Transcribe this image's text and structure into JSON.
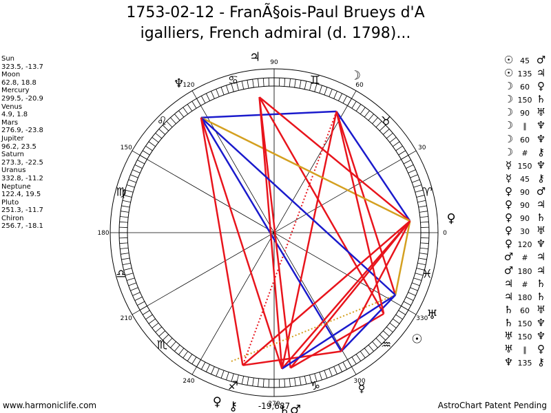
{
  "title_line1": "1753-02-12 - FranÃ§ois-Paul Brueys d'A",
  "title_line2": "igalliers, French admiral (d. 1798)...",
  "footer_left": "www.harmoniclife.com",
  "footer_right": "AstroChart Patent Pending",
  "colors": {
    "hard": "#e8141c",
    "soft": "#1a1acc",
    "minor": "#d4a020",
    "ring": "#000000"
  },
  "planets_text": [
    {
      "name": "Sun",
      "coords": "323.5, -13.7"
    },
    {
      "name": "Moon",
      "coords": "62.8, 18.8"
    },
    {
      "name": "Mercury",
      "coords": "299.5, -20.9"
    },
    {
      "name": "Venus",
      "coords": "4.9, 1.8"
    },
    {
      "name": "Mars",
      "coords": "276.9, -23.8"
    },
    {
      "name": "Jupiter",
      "coords": "96.2, 23.5"
    },
    {
      "name": "Saturn",
      "coords": "273.3, -22.5"
    },
    {
      "name": "Uranus",
      "coords": "332.8, -11.2"
    },
    {
      "name": "Neptune",
      "coords": "122.4, 19.5"
    },
    {
      "name": "Pluto",
      "coords": "251.3, -11.7"
    },
    {
      "name": "Chiron",
      "coords": "256.7, -18.1"
    }
  ],
  "aspects_text": [
    {
      "p1": "☉",
      "sym": "45",
      "p2": "♂"
    },
    {
      "p1": "☉",
      "sym": "135",
      "p2": "♃"
    },
    {
      "p1": "☽",
      "sym": "60",
      "p2": "♀"
    },
    {
      "p1": "☽",
      "sym": "150",
      "p2": "♄"
    },
    {
      "p1": "☽",
      "sym": "90",
      "p2": "♅"
    },
    {
      "p1": "☽",
      "sym": "∥",
      "p2": "♆"
    },
    {
      "p1": "☽",
      "sym": "60",
      "p2": "♆"
    },
    {
      "p1": "☽",
      "sym": "#",
      "p2": "⚷"
    },
    {
      "p1": "☿",
      "sym": "150",
      "p2": "♆"
    },
    {
      "p1": "☿",
      "sym": "45",
      "p2": "⚷"
    },
    {
      "p1": "♀",
      "sym": "90",
      "p2": "♂"
    },
    {
      "p1": "♀",
      "sym": "90",
      "p2": "♃"
    },
    {
      "p1": "♀",
      "sym": "90",
      "p2": "♄"
    },
    {
      "p1": "♀",
      "sym": "30",
      "p2": "♅"
    },
    {
      "p1": "♀",
      "sym": "120",
      "p2": "♆"
    },
    {
      "p1": "♂",
      "sym": "#",
      "p2": "♃"
    },
    {
      "p1": "♂",
      "sym": "180",
      "p2": "♃"
    },
    {
      "p1": "♃",
      "sym": "#",
      "p2": "♄"
    },
    {
      "p1": "♃",
      "sym": "180",
      "p2": "♄"
    },
    {
      "p1": "♄",
      "sym": "60",
      "p2": "♅"
    },
    {
      "p1": "♄",
      "sym": "150",
      "p2": "♆"
    },
    {
      "p1": "♅",
      "sym": "150",
      "p2": "♆"
    },
    {
      "p1": "♅",
      "sym": "∥",
      "p2": "♀"
    },
    {
      "p1": "♆",
      "sym": "135",
      "p2": "⚷"
    }
  ],
  "chart_data": {
    "type": "scatter",
    "title": "1753-02-12 - FranÃ§ois-Paul Brueys d'Aigalliers, French admiral (d. 1798)...",
    "degree_labels": [
      "0",
      "30",
      "60",
      "90",
      "120",
      "150",
      "180",
      "210",
      "240",
      "270",
      "300",
      "330"
    ],
    "center_label": "-19,687",
    "sign_glyphs": [
      "♈",
      "♉",
      "♊",
      "♋",
      "♌",
      "♍",
      "♎",
      "♏",
      "♐",
      "♑",
      "♒",
      "♓"
    ],
    "planets": [
      {
        "name": "Sun",
        "glyph": "☉",
        "longitude": 323.5,
        "declination": -13.7
      },
      {
        "name": "Moon",
        "glyph": "☽",
        "longitude": 62.8,
        "declination": 18.8
      },
      {
        "name": "Mercury",
        "glyph": "☿",
        "longitude": 299.5,
        "declination": -20.9
      },
      {
        "name": "Venus",
        "glyph": "♀",
        "longitude": 4.9,
        "declination": 1.8
      },
      {
        "name": "Mars",
        "glyph": "♂",
        "longitude": 276.9,
        "declination": -23.8
      },
      {
        "name": "Jupiter",
        "glyph": "♃",
        "longitude": 96.2,
        "declination": 23.5
      },
      {
        "name": "Saturn",
        "glyph": "♄",
        "longitude": 273.3,
        "declination": -22.5
      },
      {
        "name": "Uranus",
        "glyph": "♅",
        "longitude": 332.8,
        "declination": -11.2
      },
      {
        "name": "Neptune",
        "glyph": "♆",
        "longitude": 122.4,
        "declination": 19.5
      },
      {
        "name": "Pluto",
        "glyph": "♀",
        "longitude": 251.3,
        "declination": -11.7
      },
      {
        "name": "Chiron",
        "glyph": "⚷",
        "longitude": 256.7,
        "declination": -18.1
      }
    ],
    "aspect_lines": [
      {
        "from": "Sun",
        "to": "Mars",
        "kind": "hard"
      },
      {
        "from": "Sun",
        "to": "Jupiter",
        "kind": "hard"
      },
      {
        "from": "Moon",
        "to": "Venus",
        "kind": "soft"
      },
      {
        "from": "Moon",
        "to": "Saturn",
        "kind": "hard"
      },
      {
        "from": "Moon",
        "to": "Uranus",
        "kind": "hard"
      },
      {
        "from": "Moon",
        "to": "Neptune",
        "kind": "soft"
      },
      {
        "from": "Moon",
        "to": "Chiron",
        "kind": "hard",
        "dotted": true
      },
      {
        "from": "Mercury",
        "to": "Neptune",
        "kind": "soft"
      },
      {
        "from": "Mercury",
        "to": "Chiron",
        "kind": "hard"
      },
      {
        "from": "Venus",
        "to": "Mars",
        "kind": "hard"
      },
      {
        "from": "Venus",
        "to": "Jupiter",
        "kind": "hard"
      },
      {
        "from": "Venus",
        "to": "Saturn",
        "kind": "hard"
      },
      {
        "from": "Venus",
        "to": "Uranus",
        "kind": "minor"
      },
      {
        "from": "Venus",
        "to": "Neptune",
        "kind": "minor"
      },
      {
        "from": "Mars",
        "to": "Jupiter",
        "kind": "hard"
      },
      {
        "from": "Jupiter",
        "to": "Saturn",
        "kind": "hard"
      },
      {
        "from": "Jupiter",
        "to": "Mars",
        "kind": "hard",
        "dotted": true
      },
      {
        "from": "Saturn",
        "to": "Uranus",
        "kind": "soft"
      },
      {
        "from": "Saturn",
        "to": "Neptune",
        "kind": "hard"
      },
      {
        "from": "Uranus",
        "to": "Neptune",
        "kind": "soft"
      },
      {
        "from": "Uranus",
        "to": "Pluto",
        "kind": "minor",
        "dotted": true
      },
      {
        "from": "Neptune",
        "to": "Chiron",
        "kind": "hard"
      },
      {
        "from": "Uranus",
        "to": "Mercury",
        "kind": "soft"
      },
      {
        "from": "Sun",
        "to": "Moon",
        "kind": "hard"
      },
      {
        "from": "Venus",
        "to": "Chiron",
        "kind": "hard"
      },
      {
        "from": "Mercury",
        "to": "Venus",
        "kind": "hard"
      }
    ]
  }
}
